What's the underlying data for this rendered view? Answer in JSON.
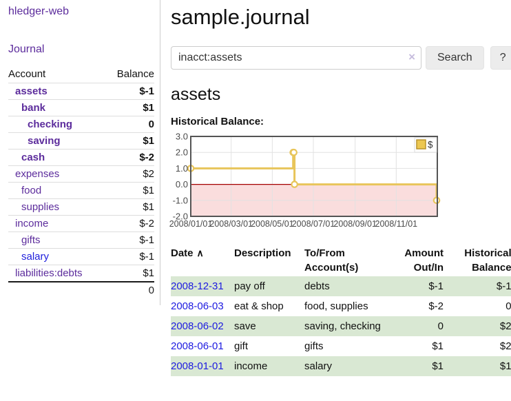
{
  "sidebar": {
    "brand": "hledger-web",
    "journal_label": "Journal",
    "accounts": {
      "headers": [
        "Account",
        "Balance"
      ],
      "rows": [
        {
          "name": "assets",
          "indent": 0,
          "bold": true,
          "blue": false,
          "balance": "$-1",
          "style": "neg-strong"
        },
        {
          "name": "bank",
          "indent": 1,
          "bold": true,
          "blue": false,
          "balance": "$1",
          "style": "pos-strong"
        },
        {
          "name": "checking",
          "indent": 2,
          "bold": true,
          "blue": false,
          "balance": "0",
          "style": "pos-strong"
        },
        {
          "name": "saving",
          "indent": 2,
          "bold": true,
          "blue": false,
          "balance": "$1",
          "style": "pos-strong"
        },
        {
          "name": "cash",
          "indent": 1,
          "bold": true,
          "blue": false,
          "balance": "$-2",
          "style": "neg-strong"
        },
        {
          "name": "expenses",
          "indent": 0,
          "bold": false,
          "blue": false,
          "balance": "$2",
          "style": "pos"
        },
        {
          "name": "food",
          "indent": 1,
          "bold": false,
          "blue": false,
          "balance": "$1",
          "style": "pos"
        },
        {
          "name": "supplies",
          "indent": 1,
          "bold": false,
          "blue": false,
          "balance": "$1",
          "style": "pos"
        },
        {
          "name": "income",
          "indent": 0,
          "bold": false,
          "blue": false,
          "balance": "$-2",
          "style": "neg"
        },
        {
          "name": "gifts",
          "indent": 1,
          "bold": false,
          "blue": false,
          "balance": "$-1",
          "style": "neg"
        },
        {
          "name": "salary",
          "indent": 1,
          "bold": false,
          "blue": true,
          "balance": "$-1",
          "style": "neg"
        },
        {
          "name": "liabilities:debts",
          "indent": 0,
          "bold": false,
          "blue": false,
          "balance": "$1",
          "style": "pos"
        }
      ],
      "total": "0"
    }
  },
  "main": {
    "title": "sample.journal",
    "search": {
      "value": "inacct:assets",
      "clear_icon": "×",
      "button_label": "Search",
      "help_label": "?"
    },
    "account_heading": "assets",
    "chart_label": "Historical Balance:"
  },
  "chart_data": {
    "type": "line",
    "step": true,
    "title": "Historical Balance",
    "series": [
      {
        "name": "$",
        "color": "#e8c55a",
        "points": [
          [
            "2008-01-01",
            1
          ],
          [
            "2008-06-01",
            2
          ],
          [
            "2008-06-02",
            2
          ],
          [
            "2008-06-03",
            0
          ],
          [
            "2008-12-31",
            -1
          ]
        ]
      }
    ],
    "x_ticks": [
      "2008/01/01",
      "2008/03/01",
      "2008/05/01",
      "2008/07/01",
      "2008/09/01",
      "2008/11/01"
    ],
    "y_ticks": [
      3.0,
      2.0,
      1.0,
      0.0,
      -1.0,
      -2.0
    ],
    "xlim": [
      "2008-01-01",
      "2009-01-01"
    ],
    "ylim": [
      -2,
      3
    ],
    "grid": true,
    "legend": {
      "label": "$",
      "fill": "#ecc751",
      "border": "#b8922c",
      "position": "top-right"
    },
    "negative_region_fill": "#fadddd",
    "zero_line_color": "#a40000",
    "plot_border_color": "#545454",
    "grid_color": "#e2e2e2",
    "tick_color": "#4a4a4a"
  },
  "register": {
    "headers": {
      "date": "Date",
      "sort_icon": "∧",
      "description": "Description",
      "accounts": "To/From Account(s)",
      "amount": "Amount Out/In",
      "balance": "Historical Balance"
    },
    "rows": [
      {
        "date": "2008-12-31",
        "description": "pay off",
        "accounts": "debts",
        "amount": "$-1",
        "amount_negative": true,
        "balance": "$-1",
        "balance_negative": true,
        "shaded": true
      },
      {
        "date": "2008-06-03",
        "description": "eat & shop",
        "accounts": "food, supplies",
        "amount": "$-2",
        "amount_negative": true,
        "balance": "0",
        "balance_negative": false,
        "shaded": false
      },
      {
        "date": "2008-06-02",
        "description": "save",
        "accounts": "saving, checking",
        "amount": "0",
        "amount_negative": false,
        "balance": "$2",
        "balance_negative": false,
        "shaded": true
      },
      {
        "date": "2008-06-01",
        "description": "gift",
        "accounts": "gifts",
        "amount": "$1",
        "amount_negative": false,
        "balance": "$2",
        "balance_negative": false,
        "shaded": false
      },
      {
        "date": "2008-01-01",
        "description": "income",
        "accounts": "salary",
        "amount": "$1",
        "amount_negative": false,
        "balance": "$1",
        "balance_negative": false,
        "shaded": true
      }
    ]
  },
  "colors": {
    "link_purple": "#5c2c9c",
    "link_blue": "#2020dc",
    "negative_strong": "#7b1111",
    "negative_soft": "#ba7070",
    "table_negative": "#8b1515",
    "row_green": "#d9e8d3",
    "chart_gold": "#e8c55a",
    "chart_negative_pink": "#fadddd",
    "button_gray": "#ececec"
  }
}
